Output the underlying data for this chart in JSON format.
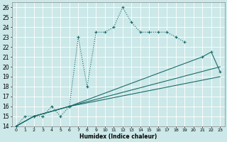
{
  "xlabel": "Humidex (Indice chaleur)",
  "bg_color": "#cce8e8",
  "line_color": "#1a6b6b",
  "grid_color": "#ffffff",
  "xlim": [
    -0.5,
    23.5
  ],
  "ylim": [
    14,
    26.5
  ],
  "xtick_labels": [
    "0",
    "1",
    "2",
    "3",
    "4",
    "5",
    "6",
    "7",
    "8",
    "9",
    "10",
    "11",
    "12",
    "13",
    "14",
    "15",
    "16",
    "17",
    "18",
    "19",
    "20",
    "21",
    "22",
    "23"
  ],
  "xtick_pos": [
    0,
    1,
    2,
    3,
    4,
    5,
    6,
    7,
    8,
    9,
    10,
    11,
    12,
    13,
    14,
    15,
    16,
    17,
    18,
    19,
    20,
    21,
    22,
    23
  ],
  "ytick_pos": [
    14,
    15,
    16,
    17,
    18,
    19,
    20,
    21,
    22,
    23,
    24,
    25,
    26
  ],
  "series": [
    {
      "x": [
        0,
        1,
        2,
        3,
        4,
        5,
        6,
        7,
        8,
        9,
        10,
        11,
        12,
        13,
        14,
        15,
        16,
        17,
        18,
        19
      ],
      "y": [
        14,
        15,
        15,
        15,
        16,
        15,
        16,
        23,
        18,
        23.5,
        23.5,
        24,
        26,
        24.5,
        23.5,
        23.5,
        23.5,
        23.5,
        23,
        22.5
      ],
      "linestyle": "dotted",
      "marker": true
    },
    {
      "x": [
        0,
        2,
        6,
        21,
        22,
        23
      ],
      "y": [
        14,
        15,
        16,
        21,
        21.5,
        19.5
      ],
      "linestyle": "solid",
      "marker": true
    },
    {
      "x": [
        0,
        2,
        6,
        23
      ],
      "y": [
        14,
        15,
        16,
        20
      ],
      "linestyle": "solid",
      "marker": false
    },
    {
      "x": [
        0,
        2,
        6,
        23
      ],
      "y": [
        14,
        15,
        16,
        19
      ],
      "linestyle": "solid",
      "marker": false
    }
  ]
}
